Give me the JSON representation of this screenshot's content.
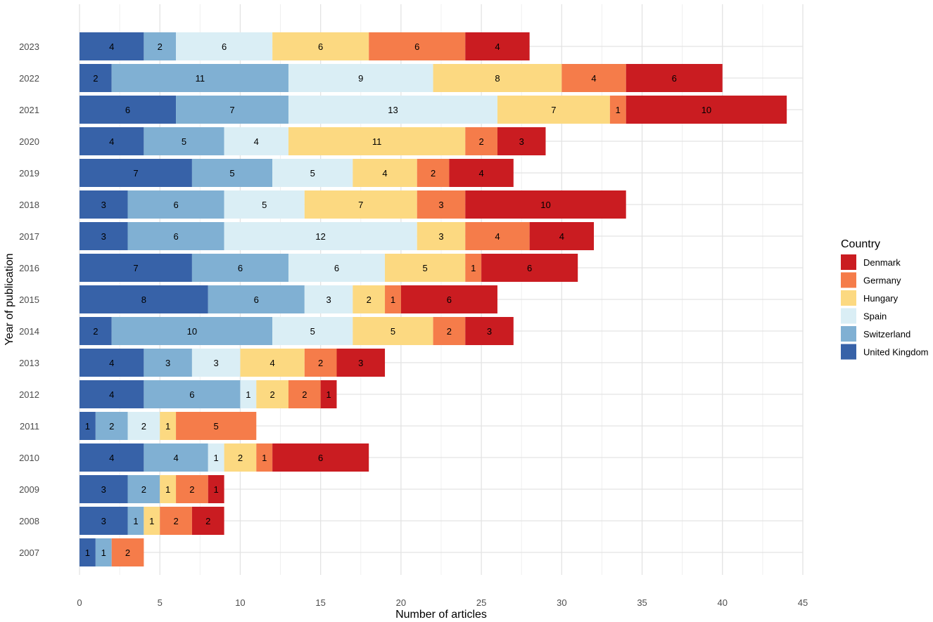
{
  "chart_data": {
    "type": "bar",
    "orientation": "horizontal",
    "stacked": true,
    "title": "",
    "xlabel": "Number of articles",
    "ylabel": "Year of publication",
    "xlim": [
      0,
      45
    ],
    "xticks": [
      0,
      5,
      10,
      15,
      20,
      25,
      30,
      35,
      40,
      45
    ],
    "grid": true,
    "legend": {
      "title": "Country",
      "placement": "right"
    },
    "categories": [
      "2023",
      "2022",
      "2021",
      "2020",
      "2019",
      "2018",
      "2017",
      "2016",
      "2015",
      "2014",
      "2013",
      "2012",
      "2011",
      "2010",
      "2009",
      "2008",
      "2007"
    ],
    "series": [
      {
        "name": "United Kingdom",
        "color": "#3762A8",
        "values": [
          4,
          2,
          6,
          4,
          7,
          3,
          3,
          7,
          8,
          2,
          4,
          4,
          1,
          4,
          3,
          3,
          1
        ]
      },
      {
        "name": "Switzerland",
        "color": "#80B0D3",
        "values": [
          2,
          11,
          7,
          5,
          5,
          6,
          6,
          6,
          6,
          10,
          3,
          6,
          2,
          4,
          2,
          1,
          1
        ]
      },
      {
        "name": "Spain",
        "color": "#DAEEF5",
        "values": [
          6,
          9,
          13,
          4,
          5,
          5,
          12,
          6,
          3,
          5,
          3,
          1,
          2,
          1,
          0,
          0,
          0
        ]
      },
      {
        "name": "Hungary",
        "color": "#FCD981",
        "values": [
          6,
          8,
          7,
          11,
          4,
          7,
          3,
          5,
          2,
          5,
          4,
          2,
          1,
          2,
          1,
          1,
          0
        ]
      },
      {
        "name": "Germany",
        "color": "#F57C4A",
        "values": [
          6,
          4,
          1,
          2,
          2,
          3,
          4,
          1,
          1,
          2,
          2,
          2,
          5,
          1,
          2,
          2,
          2
        ]
      },
      {
        "name": "Denmark",
        "color": "#CA1C21",
        "values": [
          4,
          6,
          10,
          3,
          4,
          10,
          4,
          6,
          6,
          3,
          3,
          1,
          0,
          6,
          1,
          2,
          0
        ]
      }
    ],
    "legend_order": [
      "Denmark",
      "Germany",
      "Hungary",
      "Spain",
      "Switzerland",
      "United Kingdom"
    ]
  }
}
